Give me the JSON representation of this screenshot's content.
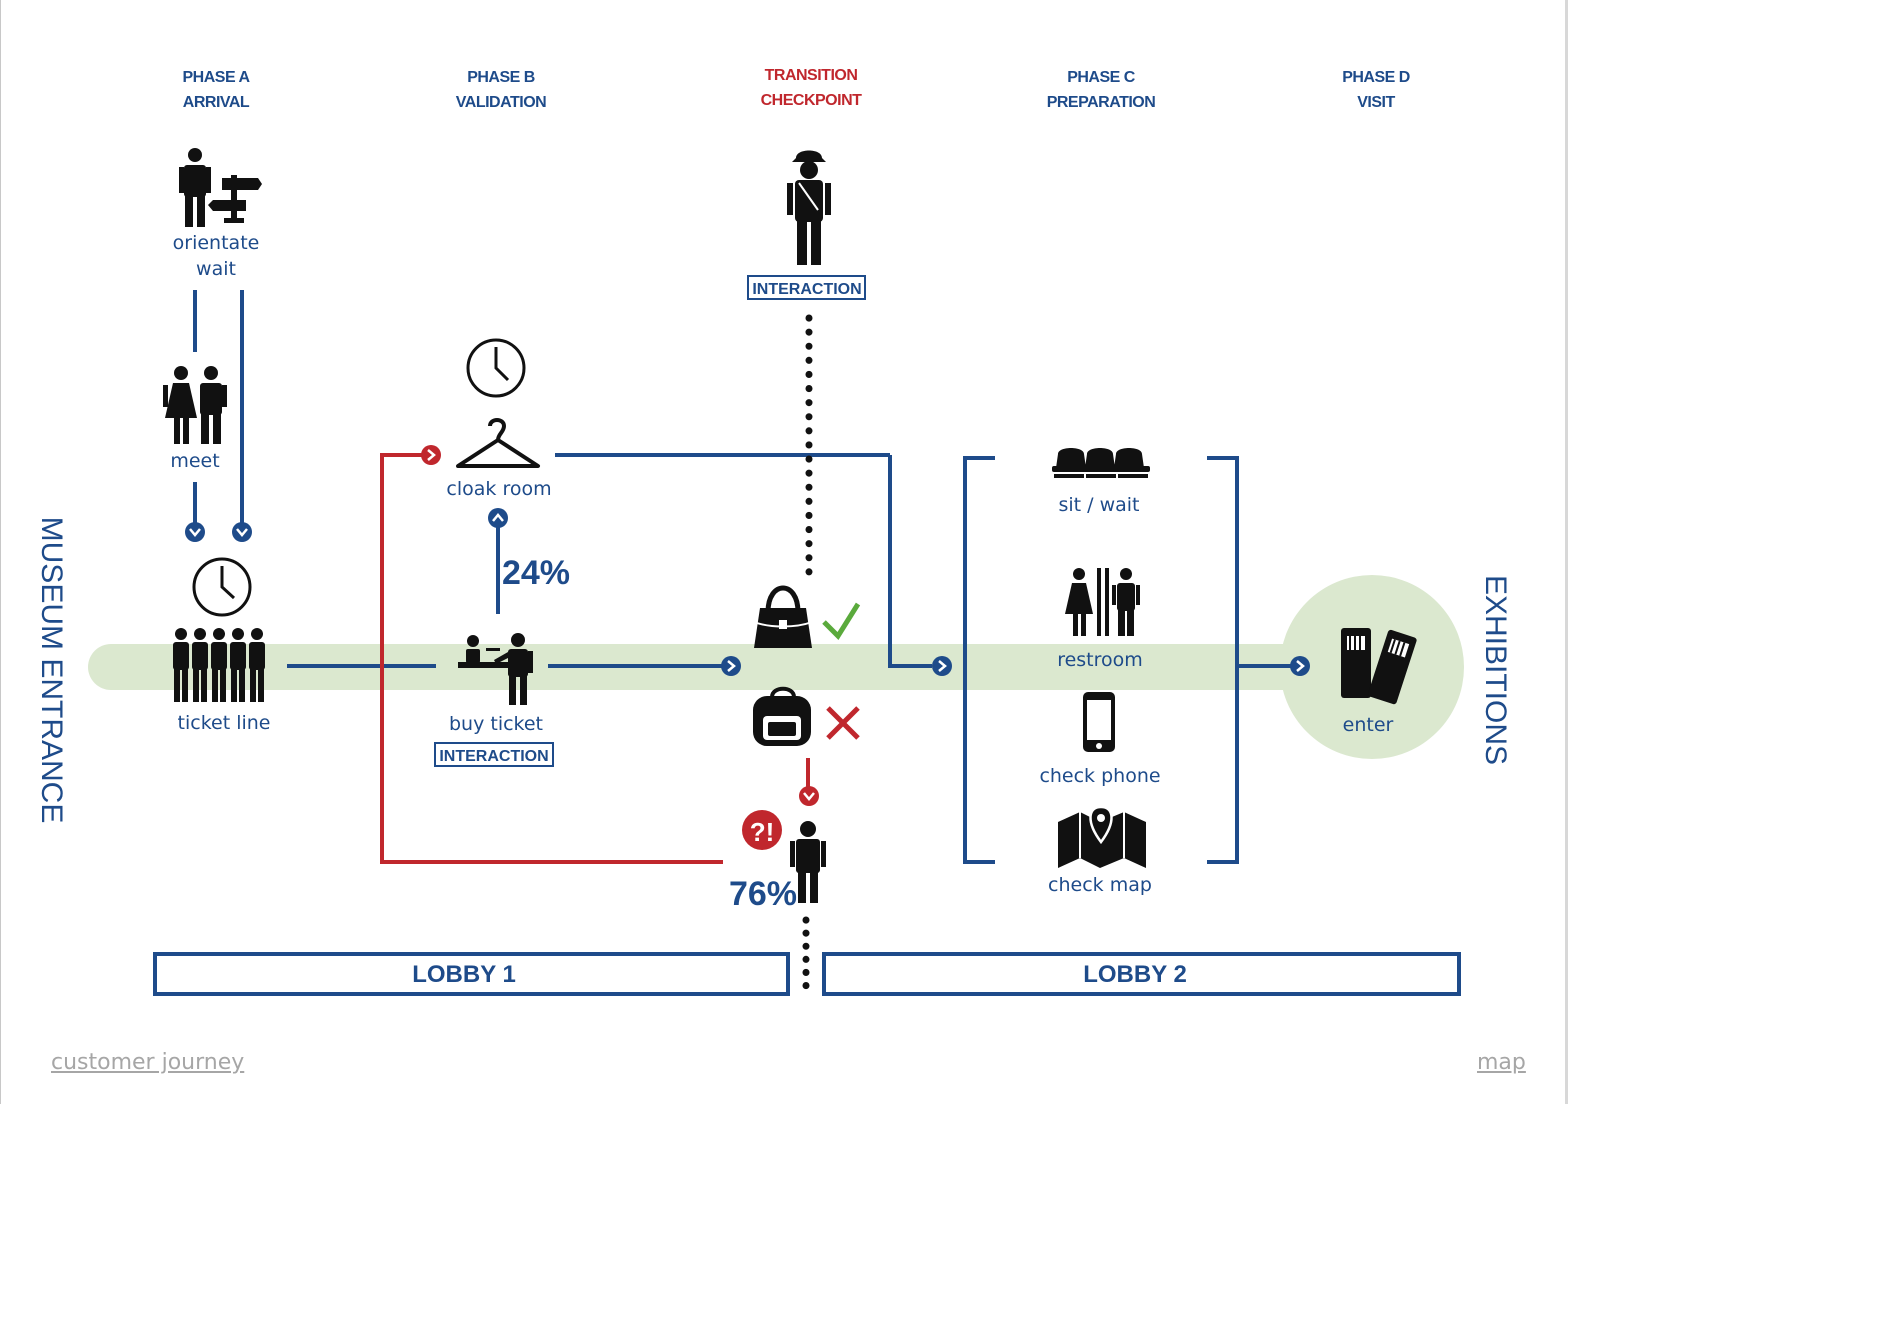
{
  "colors": {
    "navy": "#1e4b8a",
    "red": "#c0272d",
    "green": "#5aaa3c",
    "band": "#dbe8cf",
    "black": "#111111",
    "link_gray": "#a6a6a6"
  },
  "phases": [
    {
      "line1": "PHASE A",
      "line2": "ARRIVAL"
    },
    {
      "line1": "PHASE B",
      "line2": "VALIDATION"
    },
    {
      "line1": "TRANSITION",
      "line2": "CHECKPOINT"
    },
    {
      "line1": "PHASE C",
      "line2": "PREPARATION"
    },
    {
      "line1": "PHASE D",
      "line2": "VISIT"
    }
  ],
  "side_labels": {
    "left": "MUSEUM ENTRANCE",
    "right": "EXHIBITIONS"
  },
  "nodes": {
    "orientate": "orientate",
    "wait": "wait",
    "meet": "meet",
    "ticket_line": "ticket line",
    "cloak_room": "cloak room",
    "buy_ticket": "buy ticket",
    "interaction": "INTERACTION",
    "sit_wait": "sit / wait",
    "restroom": "restroom",
    "check_phone": "check phone",
    "check_map": "check map",
    "enter": "enter"
  },
  "stats": {
    "cloak_pct": "24%",
    "redirect_pct": "76%",
    "alert": "?!"
  },
  "zones": {
    "lobby1": "LOBBY 1",
    "lobby2": "LOBBY 2"
  },
  "footer": {
    "left_link": "customer journey",
    "right_link": "map"
  },
  "icons": [
    "person-signpost-icon",
    "couple-icon",
    "clock-icon",
    "queue-people-icon",
    "hanger-icon",
    "ticket-desk-icon",
    "guard-icon",
    "handbag-icon",
    "checkmark-icon",
    "backpack-icon",
    "cross-icon",
    "person-icon",
    "alert-icon",
    "seats-icon",
    "restroom-icon",
    "phone-icon",
    "map-icon",
    "tickets-icon"
  ]
}
